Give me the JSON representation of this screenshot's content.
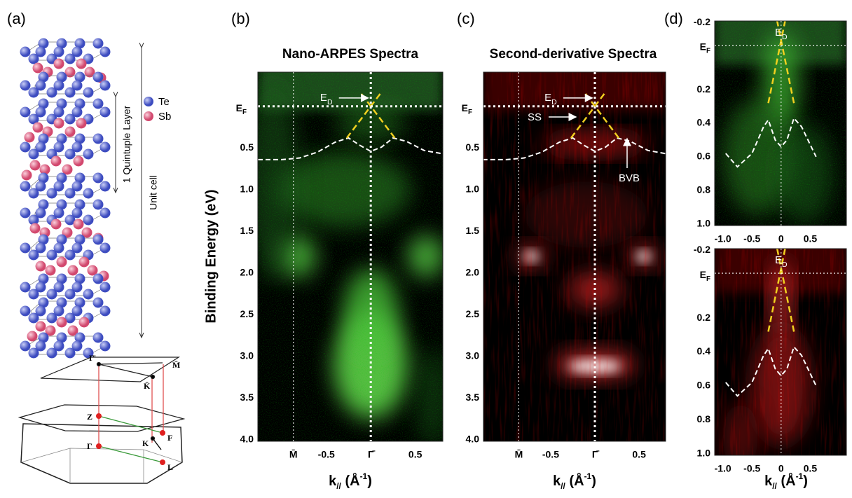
{
  "panel_a": {
    "label": "(a)",
    "legend": [
      "Te",
      "Sb"
    ],
    "quintuple_layer": "1 Quintuple Layer",
    "unit_cell": "Unit cell",
    "bz_labels": [
      "Γ̄",
      "K̄",
      "M̄",
      "Z",
      "Γ",
      "K",
      "F",
      "L"
    ]
  },
  "spectra": [
    {
      "label": "(b)",
      "title": "Nano-ARPES Spectra",
      "ylabel": "Binding Energy (eV)",
      "xlabel": {
        "main": "k",
        "sub": "//",
        "unit": " (Å",
        "sup": "-1",
        "end": ")"
      },
      "ed": {
        "base": "E",
        "sub": "D"
      },
      "ef": {
        "base": "E",
        "sub": "F"
      },
      "xlim": [
        -1.27,
        0.81
      ],
      "ylim": [
        -0.41,
        4.02
      ],
      "xticks": [
        {
          "value": -0.87,
          "label": "M̄"
        },
        -0.5,
        {
          "value": 0,
          "label": "Γ̄"
        },
        0.5
      ],
      "yticks": [
        0.5,
        {
          "value": 1,
          "label": "1.0"
        },
        1.5,
        {
          "value": 2,
          "label": "2.0"
        },
        2.5,
        {
          "value": 3,
          "label": "3.0"
        },
        3.5,
        {
          "value": 4,
          "label": "4.0"
        }
      ]
    },
    {
      "label": "(c)",
      "title": "Second-derivative Spectra",
      "xlabel": {
        "main": "k",
        "sub": "//",
        "unit": " (Å",
        "sup": "-1",
        "end": ")"
      },
      "ed": {
        "base": "E",
        "sub": "D"
      },
      "ef": {
        "base": "E",
        "sub": "F"
      },
      "ss": "SS",
      "bvb": "BVB",
      "xlim": [
        -1.26,
        0.8
      ],
      "ylim": [
        -0.41,
        4.02
      ],
      "xticks": [
        {
          "value": -0.86,
          "label": "M̄"
        },
        -0.5,
        {
          "value": 0,
          "label": "Γ̄"
        },
        0.5
      ],
      "yticks": [
        0.5,
        {
          "value": 1,
          "label": "1.0"
        },
        1.5,
        {
          "value": 2,
          "label": "2.0"
        },
        2.5,
        {
          "value": 3,
          "label": "3.0"
        },
        3.5,
        {
          "value": 4,
          "label": "4.0"
        }
      ]
    }
  ],
  "panel_d": {
    "label": "(d)",
    "xlabel": {
      "main": "k",
      "sub": "//",
      "unit": " (Å",
      "sup": "-1",
      "end": ")"
    },
    "plots": [
      {
        "ed": {
          "base": "E",
          "sub": "D"
        },
        "ef": {
          "base": "E",
          "sub": "F"
        },
        "xlim": [
          -1.14,
          1.12
        ],
        "ylim": [
          -0.21,
          1.01
        ],
        "xticks": [
          {
            "value": -1,
            "label": "-1.0"
          },
          -0.5,
          0,
          0.5
        ],
        "yticks": [
          -0.2,
          0.2,
          0.4,
          0.6,
          0.8,
          {
            "value": 1,
            "label": "1.0"
          }
        ]
      },
      {
        "ed": {
          "base": "E",
          "sub": "D"
        },
        "ef": {
          "base": "E",
          "sub": "F"
        },
        "xlim": [
          -1.14,
          1.12
        ],
        "ylim": [
          -0.21,
          1.01
        ],
        "xticks": [
          {
            "value": -1,
            "label": "-1.0"
          },
          -0.5,
          0,
          0.5
        ],
        "yticks": [
          -0.2,
          0.2,
          0.4,
          0.6,
          0.8,
          {
            "value": 1,
            "label": "1.0"
          }
        ]
      }
    ]
  }
}
